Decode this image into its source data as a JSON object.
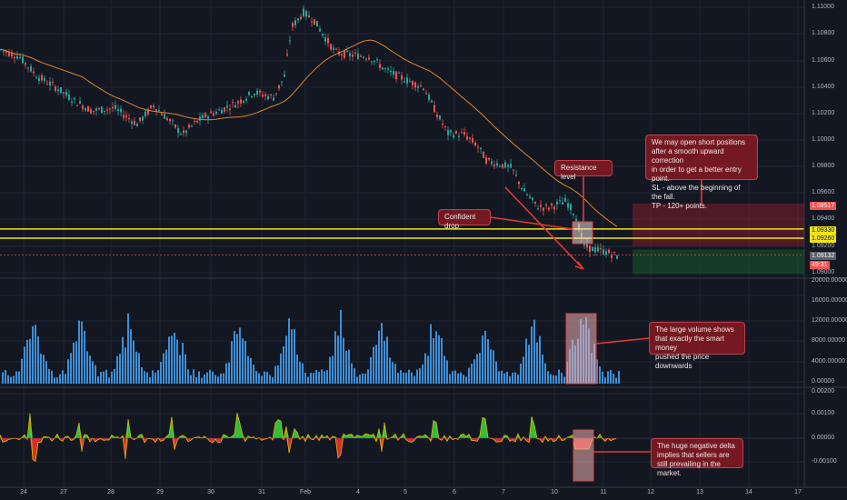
{
  "colors": {
    "background": "#131722",
    "grid": "#1f2433",
    "bull": "#26a69a",
    "bear": "#ef5350",
    "ma": "#e0852c",
    "volume": "#3d8fd8",
    "level_line": "#f2e418",
    "note_bg": "#821a22"
  },
  "price_axis": {
    "labels": [
      "1.11000",
      "1.10800",
      "1.10600",
      "1.10400",
      "1.10200",
      "1.10000",
      "1.09800",
      "1.09600",
      "1.09400",
      "1.09200",
      "1.09000"
    ]
  },
  "price_tags": {
    "red_upper": "1.09517",
    "yellow_upper": "1.09330",
    "yellow_lower": "1.09260",
    "current": "1.09132",
    "timer": "49:31"
  },
  "volume_axis": {
    "labels": [
      "20000.00000",
      "16000.00000",
      "12000.00000",
      "8000.00000",
      "4000.00000",
      "0.00000"
    ]
  },
  "delta_axis": {
    "labels": [
      "0.00200",
      "0.00100",
      "0.00000",
      "-0.00100"
    ]
  },
  "time_axis": {
    "labels": [
      "24",
      "27",
      "28",
      "29",
      "30",
      "31",
      "Feb",
      "4",
      "5",
      "6",
      "7",
      "10",
      "11",
      "12",
      "13",
      "14",
      "17"
    ]
  },
  "annotations": {
    "confident_drop": "Confident drop",
    "resistance": "Resistance level",
    "trade_idea": "We may open short positions\nafter a smooth upward correction\nin order to get a better entry point.\nSL - above the beginning of the fall.\nTP - 120+ points.",
    "volume_note": "The large volume shows\nthat exactly the smart money\npushed the price downwards",
    "delta_note": "The huge negative delta\nimplies that sellers are\nstill prevailing in the market."
  }
}
